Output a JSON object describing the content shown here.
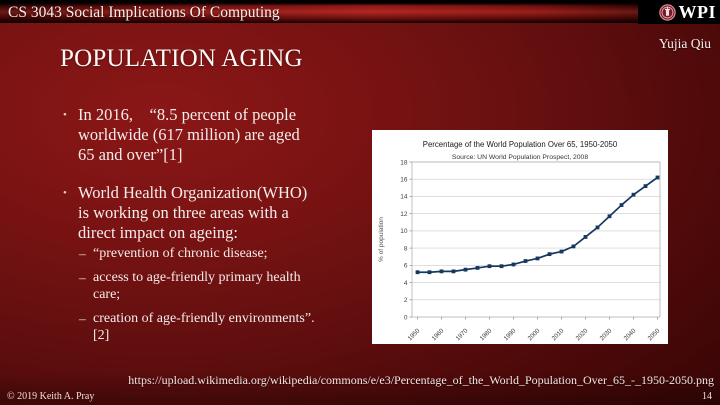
{
  "header": {
    "course_title": "CS 3043 Social Implications Of Computing",
    "logo_text": "WPI",
    "author": "Yujia Qiu"
  },
  "slide": {
    "title": "POPULATION AGING",
    "bullet_marker": "•",
    "sub_marker": "–",
    "bullets": [
      {
        "text": "In 2016,    “8.5 percent of people\nworldwide (617 million) are aged\n65 and over”[1]"
      },
      {
        "text": "World Health Organization(WHO)\nis working on three areas with a\ndirect impact on ageing:",
        "sub": [
          "“prevention of chronic disease;",
          "access to age-friendly primary health\ncare;",
          "creation of age-friendly environments”.\n[2]"
        ]
      }
    ],
    "source_url": "https://upload.wikimedia.org/wikipedia/commons/e/e3/Percentage_of_the_World_Population_Over_65_-_1950-2050.png"
  },
  "footer": {
    "copyright": "© 2019 Keith A. Pray",
    "page_number": "14"
  },
  "colors": {
    "background_red": "#7b1313",
    "bar_red": "#9b1b1b",
    "logo_black": "#000000",
    "text": "#f4edeb",
    "chart_line": "#17375E"
  },
  "chart_data": {
    "type": "line",
    "title": "Percentage of the World Population Over 65, 1950-2050",
    "subtitle": "Source: UN World Population Prospect, 2008",
    "ylabel": "% of population",
    "xlabel": "",
    "x": [
      1950,
      1955,
      1960,
      1965,
      1970,
      1975,
      1980,
      1985,
      1990,
      1995,
      2000,
      2005,
      2010,
      2015,
      2020,
      2025,
      2030,
      2035,
      2040,
      2045,
      2050
    ],
    "values": [
      5.2,
      5.2,
      5.3,
      5.3,
      5.5,
      5.7,
      5.9,
      5.9,
      6.1,
      6.5,
      6.8,
      7.3,
      7.6,
      8.2,
      9.3,
      10.4,
      11.7,
      13.0,
      14.2,
      15.2,
      16.2
    ],
    "x_tick_labels": [
      "1950",
      "1960",
      "1970",
      "1980",
      "1990",
      "2000",
      "2010",
      "2020",
      "2030",
      "2040",
      "2050"
    ],
    "ylim": [
      0,
      18
    ],
    "y_tick_step": 2,
    "grid": true,
    "legend": false,
    "line_color": "#17375E",
    "marker": "square"
  }
}
